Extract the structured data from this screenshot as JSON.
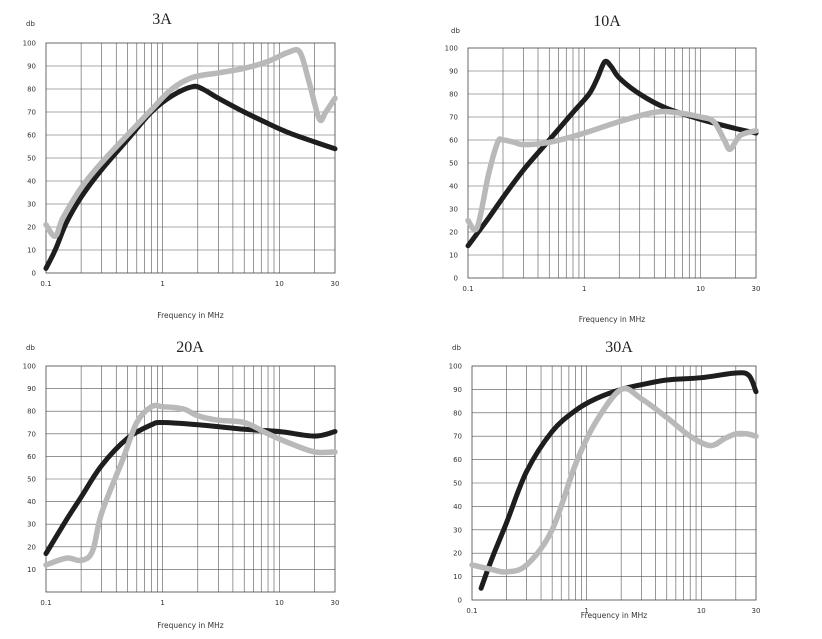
{
  "colors": {
    "series_dark": "#1e1e1e",
    "series_light": "#b9b9b9",
    "grid": "#555555"
  },
  "chart_data": [
    {
      "type": "line",
      "title": "3A",
      "ylabel": "db",
      "xlabel": "Frequency in MHz",
      "xscale": "log",
      "xlim": [
        0.1,
        30
      ],
      "ylim": [
        0,
        100
      ],
      "xticks": [
        "0.1",
        "1",
        "10",
        "30"
      ],
      "yticks": [
        "0",
        "10",
        "20",
        "30",
        "40",
        "50",
        "60",
        "70",
        "80",
        "90",
        "100"
      ],
      "series": [
        {
          "name": "dark",
          "color": "#1e1e1e",
          "x": [
            0.1,
            0.12,
            0.15,
            0.2,
            0.3,
            0.5,
            0.8,
            1.2,
            1.8,
            2.2,
            3,
            5,
            8,
            12,
            20,
            30
          ],
          "y": [
            2,
            10,
            22,
            33,
            45,
            58,
            70,
            77,
            81,
            80,
            76,
            70,
            65,
            61,
            57,
            54
          ]
        },
        {
          "name": "light",
          "color": "#b9b9b9",
          "x": [
            0.1,
            0.12,
            0.14,
            0.2,
            0.3,
            0.5,
            0.8,
            1.2,
            1.8,
            3,
            5,
            8,
            12,
            15,
            18,
            22,
            25,
            30
          ],
          "y": [
            21,
            16,
            24,
            37,
            48,
            60,
            71,
            80,
            85,
            87,
            89,
            92,
            96,
            96,
            83,
            67,
            70,
            76
          ]
        }
      ]
    },
    {
      "type": "line",
      "title": "10A",
      "ylabel": "db",
      "xlabel": "Frequency in MHz",
      "xscale": "log",
      "xlim": [
        0.1,
        30
      ],
      "ylim": [
        0,
        100
      ],
      "xticks": [
        "0.1",
        "1",
        "10",
        "30"
      ],
      "yticks": [
        "0",
        "10",
        "20",
        "30",
        "40",
        "50",
        "60",
        "70",
        "80",
        "90",
        "100"
      ],
      "series": [
        {
          "name": "dark",
          "color": "#1e1e1e",
          "x": [
            0.1,
            0.15,
            0.2,
            0.3,
            0.5,
            0.8,
            1.1,
            1.3,
            1.5,
            1.7,
            2,
            3,
            5,
            10,
            20,
            30
          ],
          "y": [
            14,
            26,
            35,
            47,
            60,
            72,
            80,
            87,
            94,
            92,
            87,
            80,
            74,
            69,
            65,
            63
          ]
        },
        {
          "name": "light",
          "color": "#b9b9b9",
          "x": [
            0.1,
            0.12,
            0.15,
            0.18,
            0.2,
            0.25,
            0.3,
            0.5,
            1,
            2,
            4,
            6,
            10,
            13,
            16,
            18,
            22,
            30
          ],
          "y": [
            25,
            22,
            45,
            59,
            60,
            59,
            58,
            59,
            63,
            68,
            72,
            72,
            70,
            68,
            60,
            56,
            62,
            64
          ]
        }
      ]
    },
    {
      "type": "line",
      "title": "20A",
      "ylabel": "db",
      "xlabel": "Frequency in MHz",
      "xscale": "log",
      "xlim": [
        0.1,
        30
      ],
      "ylim": [
        0,
        100
      ],
      "xticks": [
        "0.1",
        "1",
        "10",
        "30"
      ],
      "yticks": [
        "10",
        "20",
        "30",
        "40",
        "50",
        "60",
        "70",
        "80",
        "90",
        "100"
      ],
      "series": [
        {
          "name": "dark",
          "color": "#1e1e1e",
          "x": [
            0.1,
            0.15,
            0.2,
            0.3,
            0.5,
            0.8,
            1,
            2,
            5,
            10,
            20,
            30
          ],
          "y": [
            17,
            32,
            42,
            56,
            68,
            74,
            75,
            74,
            72,
            71,
            69,
            71
          ]
        },
        {
          "name": "light",
          "color": "#b9b9b9",
          "x": [
            0.1,
            0.15,
            0.2,
            0.25,
            0.3,
            0.45,
            0.6,
            0.8,
            1,
            1.5,
            2,
            3,
            5,
            8,
            12,
            20,
            30
          ],
          "y": [
            12,
            15,
            14,
            18,
            35,
            58,
            75,
            82,
            82,
            81,
            78,
            76,
            75,
            70,
            66,
            62,
            62
          ]
        }
      ]
    },
    {
      "type": "line",
      "title": "30A",
      "ylabel": "db",
      "xlabel": "Frequency in MHz",
      "xscale": "log",
      "xlim": [
        0.1,
        30
      ],
      "ylim": [
        0,
        100
      ],
      "xticks": [
        "0.1",
        "1",
        "10",
        "30"
      ],
      "yticks": [
        "0",
        "10",
        "20",
        "30",
        "40",
        "50",
        "60",
        "70",
        "80",
        "90",
        "100"
      ],
      "series": [
        {
          "name": "dark",
          "color": "#1e1e1e",
          "x": [
            0.12,
            0.15,
            0.2,
            0.3,
            0.5,
            0.8,
            1.2,
            2,
            3,
            5,
            10,
            20,
            26,
            30
          ],
          "y": [
            5,
            18,
            33,
            55,
            72,
            81,
            86,
            90,
            92,
            94,
            95,
            97,
            96,
            89
          ]
        },
        {
          "name": "light",
          "color": "#b9b9b9",
          "x": [
            0.1,
            0.15,
            0.2,
            0.3,
            0.5,
            0.8,
            1.2,
            2,
            3,
            5,
            8,
            12,
            16,
            20,
            25,
            30
          ],
          "y": [
            15,
            13,
            12,
            15,
            30,
            58,
            76,
            90,
            86,
            78,
            70,
            66,
            69,
            71,
            71,
            70
          ]
        }
      ]
    }
  ]
}
